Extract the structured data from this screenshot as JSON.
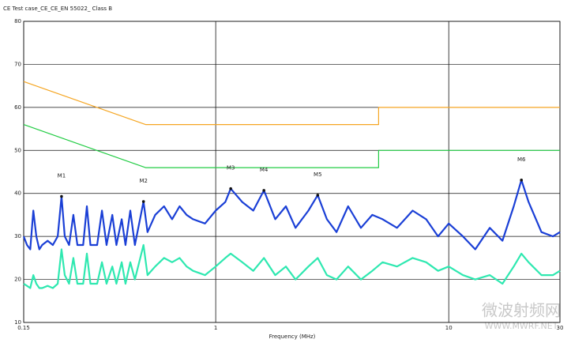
{
  "chart_data": {
    "type": "line",
    "title": "CE Test case_CE_CE_EN 55022_ Class B",
    "xlabel": "Frequency (MHz)",
    "xscale": "log",
    "xlim": [
      0.15,
      30
    ],
    "ylim": [
      10,
      80
    ],
    "xticks": [
      0.15,
      1,
      10,
      30
    ],
    "yticks": [
      10,
      20,
      30,
      40,
      50,
      60,
      70,
      80
    ],
    "grid": true,
    "series": [
      {
        "color": "#f5a623",
        "x": [
          0.15,
          0.5,
          5,
          5,
          30
        ],
        "values": [
          66,
          56,
          56,
          60,
          60
        ]
      },
      {
        "color": "#22cc44",
        "x": [
          0.15,
          0.5,
          5,
          5,
          30
        ],
        "values": [
          56,
          46,
          46,
          50,
          50
        ]
      },
      {
        "color": "#1a3fd6",
        "x": [
          0.15,
          0.155,
          0.16,
          0.165,
          0.17,
          0.175,
          0.18,
          0.19,
          0.2,
          0.21,
          0.218,
          0.225,
          0.235,
          0.245,
          0.255,
          0.27,
          0.28,
          0.29,
          0.31,
          0.325,
          0.34,
          0.36,
          0.375,
          0.395,
          0.41,
          0.43,
          0.45,
          0.49,
          0.51,
          0.55,
          0.6,
          0.65,
          0.7,
          0.75,
          0.8,
          0.9,
          1.0,
          1.1,
          1.16,
          1.3,
          1.45,
          1.61,
          1.8,
          2.0,
          2.2,
          2.5,
          2.74,
          3.0,
          3.3,
          3.7,
          4.2,
          4.7,
          5.2,
          6.0,
          7.0,
          8.0,
          9.0,
          10,
          11.5,
          13,
          15,
          17,
          19,
          20.5,
          22,
          25,
          28,
          30
        ],
        "values": [
          30,
          28,
          27,
          36,
          30,
          27,
          28,
          29,
          28,
          30,
          39.3,
          30,
          28,
          35,
          28,
          28,
          37,
          28,
          28,
          36,
          28,
          35,
          28,
          34,
          28,
          36,
          28,
          38.1,
          31,
          35,
          37,
          34,
          37,
          35,
          34,
          33,
          36,
          38,
          41.1,
          38,
          36,
          40.7,
          34,
          37,
          32,
          36,
          39.6,
          34,
          31,
          37,
          32,
          35,
          34,
          32,
          36,
          34,
          30,
          33,
          30,
          27,
          32,
          29,
          37,
          43.1,
          38,
          31,
          30,
          31
        ]
      },
      {
        "color": "#2ee8b0",
        "x": [
          0.15,
          0.155,
          0.16,
          0.165,
          0.17,
          0.175,
          0.18,
          0.19,
          0.2,
          0.21,
          0.218,
          0.225,
          0.235,
          0.245,
          0.255,
          0.27,
          0.28,
          0.29,
          0.31,
          0.325,
          0.34,
          0.36,
          0.375,
          0.395,
          0.41,
          0.43,
          0.45,
          0.49,
          0.51,
          0.55,
          0.6,
          0.65,
          0.7,
          0.75,
          0.8,
          0.9,
          1.0,
          1.1,
          1.16,
          1.3,
          1.45,
          1.61,
          1.8,
          2.0,
          2.2,
          2.5,
          2.74,
          3.0,
          3.3,
          3.7,
          4.2,
          4.7,
          5.2,
          6.0,
          7.0,
          8.0,
          9.0,
          10,
          11.5,
          13,
          15,
          17,
          19,
          20.5,
          22,
          25,
          28,
          30
        ],
        "values": [
          19,
          18.5,
          18,
          21,
          19,
          18,
          18,
          18.5,
          18,
          19,
          27,
          21,
          19,
          25,
          19,
          19,
          26,
          19,
          19,
          24,
          19,
          23,
          19,
          24,
          19,
          24,
          20,
          28,
          21,
          23,
          25,
          24,
          25,
          23,
          22,
          21,
          23,
          25,
          26,
          24,
          22,
          25,
          21,
          23,
          20,
          23,
          25,
          21,
          20,
          23,
          20,
          22,
          24,
          23,
          25,
          24,
          22,
          23,
          21,
          20,
          21,
          19,
          23,
          26,
          24,
          21,
          21,
          22
        ]
      }
    ],
    "markers": [
      {
        "label": "M1",
        "x": 0.218,
        "value": 39.3
      },
      {
        "label": "M2",
        "x": 0.49,
        "value": 38.1
      },
      {
        "label": "M3",
        "x": 1.16,
        "value": 41.1
      },
      {
        "label": "M4",
        "x": 1.61,
        "value": 40.7
      },
      {
        "label": "M5",
        "x": 2.74,
        "value": 39.6
      },
      {
        "label": "M6",
        "x": 20.5,
        "value": 43.1
      }
    ]
  },
  "watermark": {
    "title": "微波射频网",
    "url": "WWW.MWRF.NET"
  }
}
